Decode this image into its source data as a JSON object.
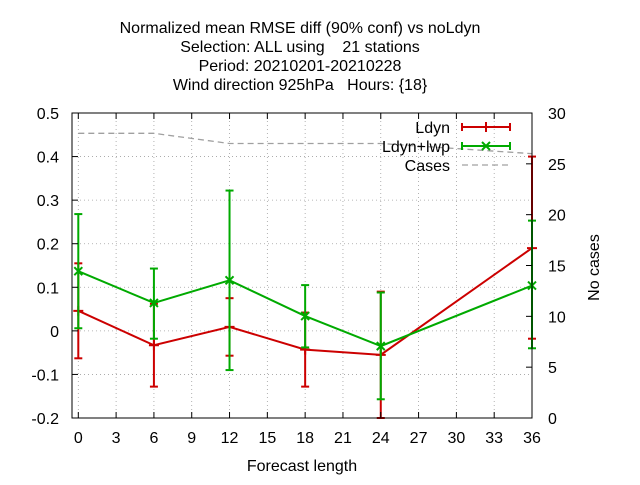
{
  "chart_data": {
    "type": "line",
    "title_lines": [
      "Normalized mean RMSE diff (90% conf) vs noLdyn",
      "Selection: ALL using    21 stations",
      "Period: 20210201-20210228",
      "Wind direction 925hPa   Hours: {18}"
    ],
    "xlabel": "Forecast length",
    "ylabel": "",
    "y2label": "No cases",
    "xlim": [
      -0.5,
      36
    ],
    "ylim": [
      -0.2,
      0.5
    ],
    "y2lim": [
      0,
      30
    ],
    "xticks": [
      0,
      3,
      6,
      9,
      12,
      15,
      18,
      21,
      24,
      27,
      30,
      33,
      36
    ],
    "yticks": [
      -0.2,
      -0.1,
      0,
      0.1,
      0.2,
      0.3,
      0.4,
      0.5
    ],
    "ytick_labels": [
      "-0.2",
      "-0.1",
      "0",
      "0.1",
      "0.2",
      "0.3",
      "0.4",
      "0.5"
    ],
    "y2ticks": [
      0,
      5,
      10,
      15,
      20,
      25,
      30
    ],
    "grid": true,
    "legend_position": "top-right",
    "series": [
      {
        "name": "Ldyn",
        "color": "#cc0000",
        "marker": "plus",
        "x": [
          0,
          6,
          12,
          18,
          24,
          36
        ],
        "y": [
          0.046,
          -0.033,
          0.009,
          -0.043,
          -0.055,
          0.19
        ],
        "err_low": [
          -0.063,
          -0.128,
          -0.057,
          -0.128,
          -0.2,
          -0.018
        ],
        "err_high": [
          0.155,
          0.062,
          0.075,
          0.042,
          0.09,
          0.4
        ]
      },
      {
        "name": "Ldyn+lwp",
        "color": "#00aa00",
        "marker": "cross",
        "x": [
          0,
          6,
          12,
          18,
          24,
          36
        ],
        "y": [
          0.137,
          0.064,
          0.116,
          0.034,
          -0.035,
          0.104
        ],
        "err_low": [
          0.006,
          -0.018,
          -0.09,
          -0.038,
          -0.157,
          -0.04
        ],
        "err_high": [
          0.268,
          0.143,
          0.322,
          0.105,
          0.088,
          0.253
        ]
      },
      {
        "name": "Cases",
        "color": "#a0a0a0",
        "style": "dashed",
        "axis": "y2",
        "x": [
          0,
          6,
          12,
          18,
          24,
          36
        ],
        "y": [
          28,
          28,
          27,
          27,
          27,
          26
        ]
      }
    ]
  }
}
